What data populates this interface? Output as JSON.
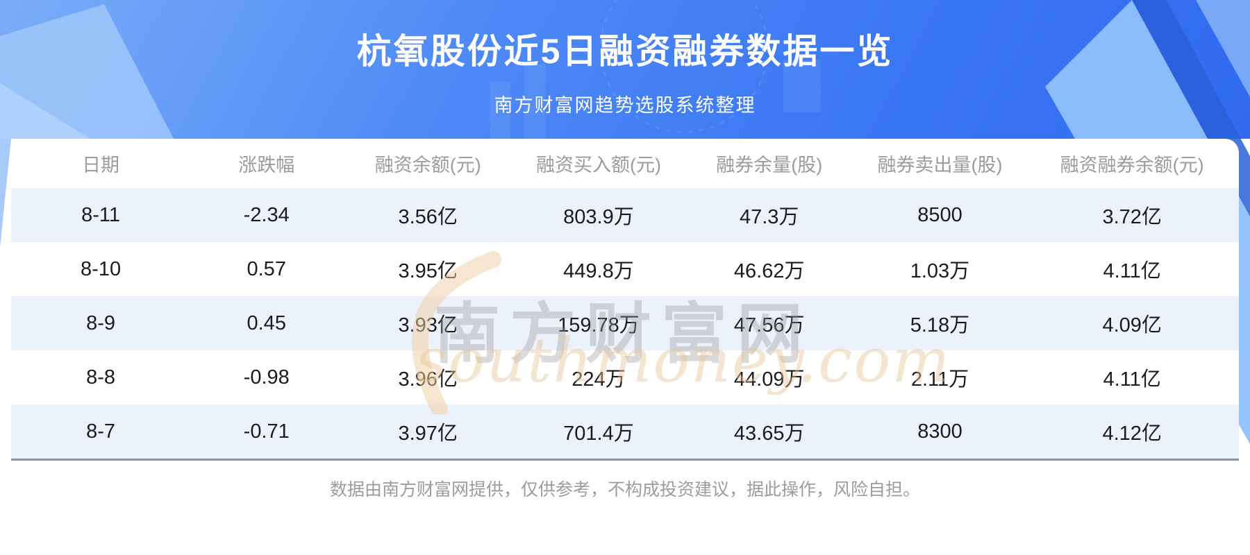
{
  "header": {
    "title": "杭氧股份近5日融资融券数据一览",
    "subtitle": "南方财富网趋势选股系统整理"
  },
  "table": {
    "columns": [
      "日期",
      "涨跌幅",
      "融资余额(元)",
      "融资买入额(元)",
      "融券余量(股)",
      "融券卖出量(股)",
      "融资融券余额(元)"
    ],
    "rows": [
      [
        "8-11",
        "-2.34",
        "3.56亿",
        "803.9万",
        "47.3万",
        "8500",
        "3.72亿"
      ],
      [
        "8-10",
        "0.57",
        "3.95亿",
        "449.8万",
        "46.62万",
        "1.03万",
        "4.11亿"
      ],
      [
        "8-9",
        "0.45",
        "3.93亿",
        "159.78万",
        "47.56万",
        "5.18万",
        "4.09亿"
      ],
      [
        "8-8",
        "-0.98",
        "3.96亿",
        "224万",
        "44.09万",
        "2.11万",
        "4.11亿"
      ],
      [
        "8-7",
        "-0.71",
        "3.97亿",
        "701.4万",
        "43.65万",
        "8300",
        "4.12亿"
      ]
    ]
  },
  "watermark": {
    "cn": "南方财富网",
    "en": "southmoney.com"
  },
  "footer": {
    "disclaimer": "数据由南方财富网提供，仅供参考，不构成投资建议，据此操作，风险自担。"
  },
  "colors": {
    "banner_gradient_start": "#79adf9",
    "banner_gradient_end": "#2f6af0",
    "row_stripe": "#ecf2fb",
    "card_bottom_border": "#7e96ae",
    "title_text": "#ffffff",
    "column_header_text": "#9b9b9b",
    "data_text": "#1b1b1b",
    "footer_text": "#9c9c9c",
    "watermark_gray": "#969696",
    "watermark_tan": "#e8c496"
  },
  "chart_data": {
    "type": "table",
    "title": "杭氧股份近5日融资融券数据一览",
    "subtitle": "南方财富网趋势选股系统整理",
    "columns": [
      "日期",
      "涨跌幅",
      "融资余额(元)",
      "融资买入额(元)",
      "融券余量(股)",
      "融券卖出量(股)",
      "融资融券余额(元)"
    ],
    "rows": [
      [
        "8-11",
        "-2.34",
        "3.56亿",
        "803.9万",
        "47.3万",
        "8500",
        "3.72亿"
      ],
      [
        "8-10",
        "0.57",
        "3.95亿",
        "449.8万",
        "46.62万",
        "1.03万",
        "4.11亿"
      ],
      [
        "8-9",
        "0.45",
        "3.93亿",
        "159.78万",
        "47.56万",
        "5.18万",
        "4.09亿"
      ],
      [
        "8-8",
        "-0.98",
        "3.96亿",
        "224万",
        "44.09万",
        "2.11万",
        "4.11亿"
      ],
      [
        "8-7",
        "-0.71",
        "3.97亿",
        "701.4万",
        "43.65万",
        "8300",
        "4.12亿"
      ]
    ]
  }
}
